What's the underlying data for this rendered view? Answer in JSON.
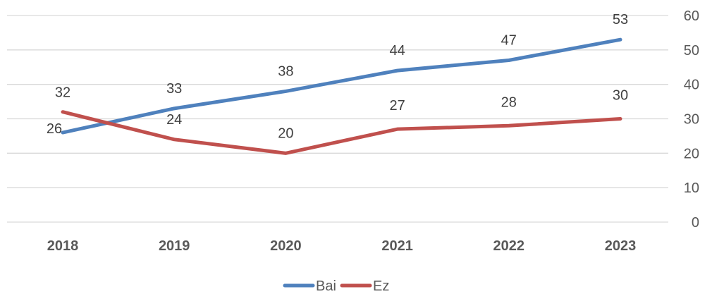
{
  "chart_data": {
    "type": "line",
    "categories": [
      "2018",
      "2019",
      "2020",
      "2021",
      "2022",
      "2023"
    ],
    "series": [
      {
        "name": "Bai",
        "values": [
          26,
          33,
          38,
          44,
          47,
          53
        ],
        "color": "#4F81BD"
      },
      {
        "name": "Ez",
        "values": [
          32,
          24,
          20,
          27,
          28,
          30
        ],
        "color": "#C0504D"
      }
    ],
    "ylim": [
      0,
      60
    ],
    "yticks": [
      0,
      10,
      20,
      30,
      40,
      50,
      60
    ],
    "y_axis_position": "right",
    "grid": true,
    "grid_color": "#D9D9D9",
    "legend": "bottom"
  }
}
